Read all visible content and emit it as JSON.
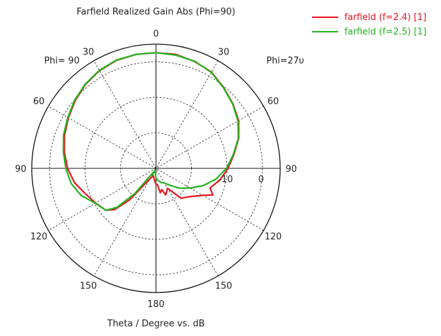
{
  "chart_data": {
    "type": "polar",
    "title": "Farfield Realized Gain Abs (Phi=90)",
    "xlabel": "Theta / Degree vs. dB",
    "left_label": "Phi= 90",
    "right_label": "Phi=27υ",
    "radial_unit": "dB",
    "radial_range": [
      -30,
      5
    ],
    "radial_rings": [
      -30,
      -20,
      -10,
      0
    ],
    "radial_tick_labels": [
      "-10",
      "0"
    ],
    "angle_step": 30,
    "angle_tick_labels": [
      {
        "label": "0",
        "angle": 0
      },
      {
        "label": "30",
        "angle": 30
      },
      {
        "label": "30",
        "angle": -30
      },
      {
        "label": "60",
        "angle": 60
      },
      {
        "label": "60",
        "angle": -60
      },
      {
        "label": "90",
        "angle": 90
      },
      {
        "label": "90",
        "angle": -90
      },
      {
        "label": "120",
        "angle": 120
      },
      {
        "label": "120",
        "angle": -120
      },
      {
        "label": "150",
        "angle": 150
      },
      {
        "label": "150",
        "angle": -150
      },
      {
        "label": "180",
        "angle": 180
      }
    ],
    "grid": true,
    "legend_position": "top-right",
    "series": [
      {
        "name": "farfield (f=2.4) [1]",
        "color": "#e8141e",
        "points": [
          [
            0,
            2.6
          ],
          [
            10,
            2.6
          ],
          [
            20,
            2.0
          ],
          [
            30,
            1.3
          ],
          [
            40,
            -0.3
          ],
          [
            50,
            -1.7
          ],
          [
            60,
            -3.1
          ],
          [
            70,
            -5.2
          ],
          [
            80,
            -7.7
          ],
          [
            90,
            -9.7
          ],
          [
            100,
            -11.6
          ],
          [
            110,
            -13.8
          ],
          [
            115,
            -12.3
          ],
          [
            120,
            -14.8
          ],
          [
            130,
            -17.6
          ],
          [
            140,
            -19.0
          ],
          [
            150,
            -23.5
          ],
          [
            160,
            -22.0
          ],
          [
            165,
            -23.8
          ],
          [
            170,
            -23.0
          ],
          [
            175,
            -25.4
          ],
          [
            180,
            -25.5
          ],
          [
            -175,
            -26.4
          ],
          [
            -170,
            -27.0
          ],
          [
            -160,
            -27.8
          ],
          [
            -150,
            -26.6
          ],
          [
            -140,
            -18.4
          ],
          [
            -135,
            -13.6
          ],
          [
            -130,
            -11.6
          ],
          [
            -120,
            -10.4
          ],
          [
            -110,
            -8.9
          ],
          [
            -100,
            -6.7
          ],
          [
            -90,
            -5.1
          ],
          [
            -80,
            -3.8
          ],
          [
            -70,
            -2.6
          ],
          [
            -60,
            -1.5
          ],
          [
            -50,
            -0.3
          ],
          [
            -40,
            0.9
          ],
          [
            -30,
            1.8
          ],
          [
            -20,
            2.4
          ],
          [
            -10,
            2.6
          ],
          [
            0,
            2.6
          ]
        ]
      },
      {
        "name": "farfield (f=2.5) [1]",
        "color": "#20b41e",
        "points": [
          [
            0,
            2.6
          ],
          [
            10,
            2.4
          ],
          [
            20,
            2.1
          ],
          [
            30,
            1.2
          ],
          [
            40,
            -0.4
          ],
          [
            50,
            -1.8
          ],
          [
            60,
            -3.3
          ],
          [
            70,
            -5.3
          ],
          [
            80,
            -7.9
          ],
          [
            90,
            -10.1
          ],
          [
            100,
            -12.8
          ],
          [
            110,
            -15.8
          ],
          [
            120,
            -18.9
          ],
          [
            130,
            -21.3
          ],
          [
            140,
            -23.7
          ],
          [
            150,
            -25.2
          ],
          [
            160,
            -25.8
          ],
          [
            170,
            -26.5
          ],
          [
            180,
            -27.3
          ],
          [
            -170,
            -28.8
          ],
          [
            -160,
            -29.5
          ],
          [
            -150,
            -27.8
          ],
          [
            -145,
            -28.5
          ],
          [
            -140,
            -20.8
          ],
          [
            -135,
            -14.5
          ],
          [
            -130,
            -11.6
          ],
          [
            -120,
            -10.3
          ],
          [
            -110,
            -7.6
          ],
          [
            -100,
            -5.7
          ],
          [
            -90,
            -4.6
          ],
          [
            -80,
            -3.5
          ],
          [
            -70,
            -2.3
          ],
          [
            -60,
            -1.3
          ],
          [
            -50,
            -0.1
          ],
          [
            -40,
            1.0
          ],
          [
            -30,
            1.9
          ],
          [
            -20,
            2.5
          ],
          [
            -10,
            2.6
          ],
          [
            0,
            2.6
          ]
        ]
      }
    ]
  }
}
